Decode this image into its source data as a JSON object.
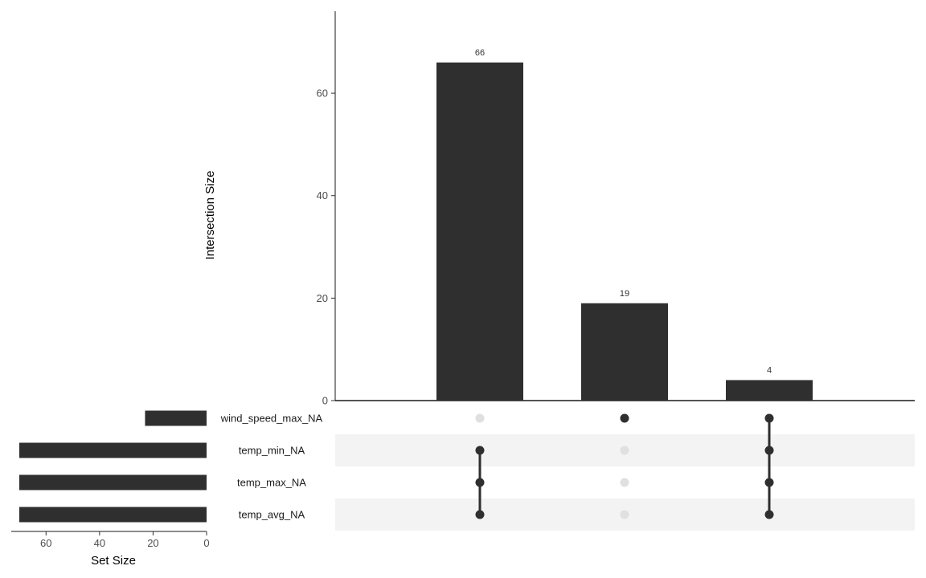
{
  "chart_data": [
    {
      "type": "bar",
      "ylabel": "Intersection Size",
      "ylim": [
        0,
        76
      ],
      "yticks": [
        0,
        20,
        40,
        60
      ],
      "values": [
        66,
        19,
        4
      ],
      "memberships": [
        [
          "temp_min_NA",
          "temp_max_NA",
          "temp_avg_NA"
        ],
        [
          "wind_speed_max_NA"
        ],
        [
          "wind_speed_max_NA",
          "temp_min_NA",
          "temp_max_NA",
          "temp_avg_NA"
        ]
      ],
      "bar_color": "#2f2f2f"
    },
    {
      "type": "bar",
      "orientation": "horizontal",
      "xlabel": "Set Size",
      "xlim": [
        73,
        0
      ],
      "xticks": [
        60,
        40,
        20,
        0
      ],
      "categories": [
        "wind_speed_max_NA",
        "temp_min_NA",
        "temp_max_NA",
        "temp_avg_NA"
      ],
      "values": [
        23,
        70,
        70,
        70
      ],
      "bar_color": "#2f2f2f"
    }
  ],
  "colors": {
    "dot_active": "#2f2f2f",
    "dot_inactive": "#e0e0e0",
    "stripe": "#f3f3f3"
  }
}
